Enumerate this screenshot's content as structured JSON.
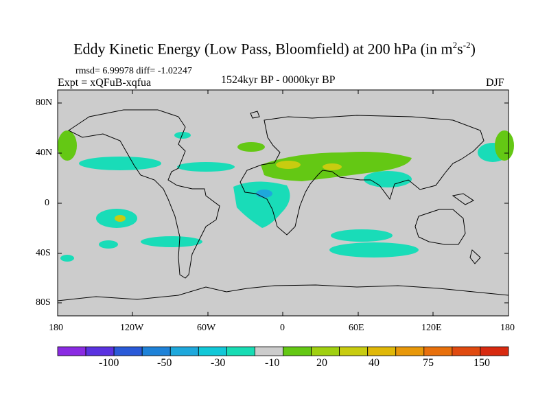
{
  "title": {
    "main": "Eddy Kinetic Energy (Low Pass, Bloomfield) at 200 hPa (in m",
    "sup1": "2",
    "mid": "s",
    "sup2": "-2",
    "end": ")"
  },
  "stats": "rmsd= 6.99978 diff= -1.02247",
  "experiment": "Expt = xQFuB-xqfua",
  "period": "1524kyr BP - 0000kyr BP",
  "season": "DJF",
  "lat_labels": [
    "80N",
    "40N",
    "0",
    "40S",
    "80S"
  ],
  "lon_labels": [
    "180",
    "120W",
    "60W",
    "0",
    "60E",
    "120E",
    "180"
  ],
  "colorbar": {
    "colors": [
      "#8a2be2",
      "#5a32e0",
      "#2a5ad8",
      "#1e82d8",
      "#1ea8dc",
      "#12c8d8",
      "#18dcb4",
      "#cccccc",
      "#64c814",
      "#a0d010",
      "#c8cc10",
      "#e0b808",
      "#e8980a",
      "#e8700c",
      "#e04a10",
      "#d82a10"
    ],
    "labels": [
      "-100",
      "-50",
      "-30",
      "-10",
      "20",
      "40",
      "75",
      "150"
    ]
  },
  "colors": {
    "ocean_land": "#cccccc",
    "negative_fill": "#19dcb8",
    "neg_strong_fill": "#1ea8dc",
    "positive_fill": "#64c814",
    "pos_strong_fill": "#c8cc10"
  }
}
